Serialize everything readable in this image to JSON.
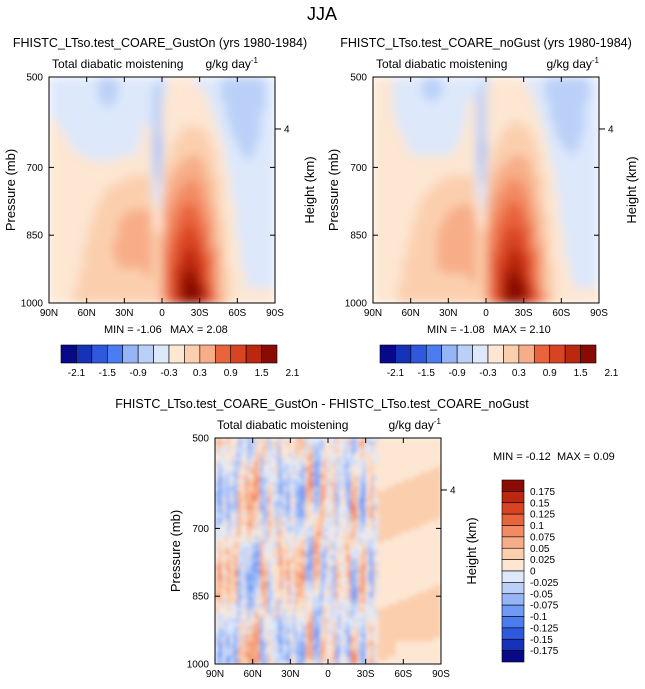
{
  "figure_title": "JJA",
  "chart_data": [
    {
      "type": "heatmap",
      "title": "FHISTC_LTso.test_COARE_GustOn (yrs 1980-1984)",
      "subtitle_left": "Total diabatic moistening",
      "subtitle_right": "g/kg day",
      "units_exp": "-1",
      "ylabel": "Pressure (mb)",
      "ylabel_right": "Height (km)",
      "xticks": [
        "90N",
        "60N",
        "30N",
        "0",
        "30S",
        "60S",
        "90S"
      ],
      "yticks": [
        "500",
        "700",
        "850",
        "1000"
      ],
      "yticks_right": [
        "4"
      ],
      "min_label": "MIN =",
      "min_value": "-1.06",
      "max_label": "MAX =",
      "max_value": "2.08",
      "colorbar_labels": [
        "-2.1",
        "-1.5",
        "-0.9",
        "-0.3",
        "0.3",
        "0.9",
        "1.5",
        "2.1"
      ],
      "colorbar_range": [
        -2.1,
        2.1
      ],
      "colorbar_levels": 14
    },
    {
      "type": "heatmap",
      "title": "FHISTC_LTso.test_COARE_noGust (yrs 1980-1984)",
      "subtitle_left": "Total diabatic moistening",
      "subtitle_right": "g/kg day",
      "units_exp": "-1",
      "ylabel": "Pressure (mb)",
      "ylabel_right": "Height (km)",
      "xticks": [
        "90N",
        "60N",
        "30N",
        "0",
        "30S",
        "60S",
        "90S"
      ],
      "yticks": [
        "500",
        "700",
        "850",
        "1000"
      ],
      "yticks_right": [
        "4"
      ],
      "min_label": "MIN =",
      "min_value": "-1.08",
      "max_label": "MAX =",
      "max_value": "2.10",
      "colorbar_labels": [
        "-2.1",
        "-1.5",
        "-0.9",
        "-0.3",
        "0.3",
        "0.9",
        "1.5",
        "2.1"
      ],
      "colorbar_range": [
        -2.1,
        2.1
      ],
      "colorbar_levels": 14
    },
    {
      "type": "heatmap",
      "title": "FHISTC_LTso.test_COARE_GustOn - FHISTC_LTso.test_COARE_noGust",
      "subtitle_left": "Total diabatic moistening",
      "subtitle_right": "g/kg day",
      "units_exp": "-1",
      "ylabel": "Pressure (mb)",
      "ylabel_right": "Height (km)",
      "xticks": [
        "90N",
        "60N",
        "30N",
        "0",
        "30S",
        "60S",
        "90S"
      ],
      "yticks": [
        "500",
        "700",
        "850",
        "1000"
      ],
      "yticks_right": [
        "4"
      ],
      "min_label": "MIN =",
      "min_value": "-0.12",
      "max_label": "MAX =",
      "max_value": "0.09",
      "colorbar_labels": [
        "0.175",
        "0.15",
        "0.125",
        "0.1",
        "0.075",
        "0.05",
        "0.025",
        "0",
        "-0.025",
        "-0.05",
        "-0.075",
        "-0.1",
        "-0.125",
        "-0.15",
        "-0.175"
      ],
      "colorbar_range": [
        -0.175,
        0.175
      ],
      "colorbar_levels": 16
    }
  ],
  "colors": {
    "cool": [
      "#08088a",
      "#1632b9",
      "#2e59dc",
      "#4c7df0",
      "#6f9af5",
      "#95b5f7",
      "#bad0f8",
      "#dde8fb"
    ],
    "warm": [
      "#fde6d2",
      "#fbcfae",
      "#f7ad88",
      "#f28a62",
      "#e8643d",
      "#d84421",
      "#bb280f",
      "#8a0b04"
    ]
  }
}
